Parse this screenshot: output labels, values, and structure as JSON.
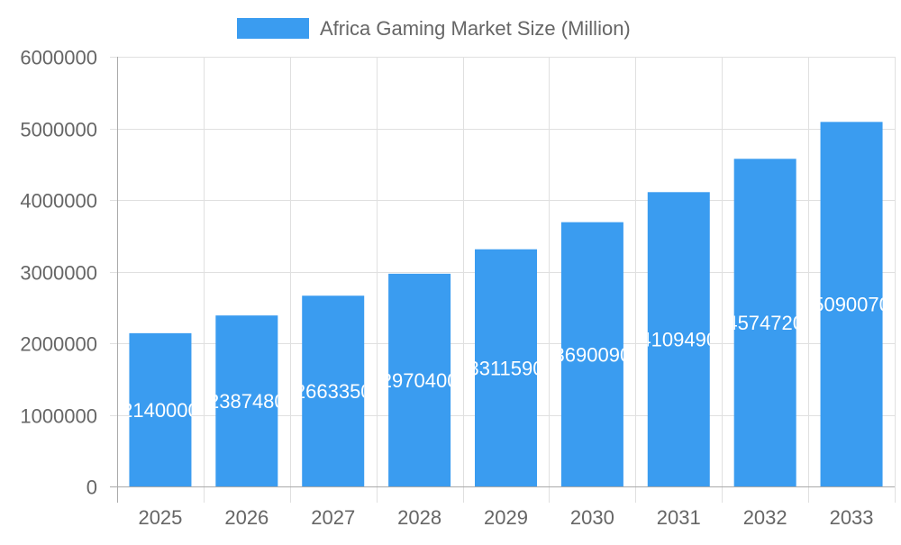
{
  "chart_data": {
    "type": "bar",
    "title": "",
    "categories": [
      "2025",
      "2026",
      "2027",
      "2028",
      "2029",
      "2030",
      "2031",
      "2032",
      "2033"
    ],
    "series": [
      {
        "name": "Africa Gaming Market Size (Million)",
        "color": "#3a9cf0",
        "values": [
          2140000,
          2387480,
          2663350,
          2970400,
          3311590,
          3690090,
          4109490,
          4574720,
          5090070
        ]
      }
    ],
    "yticks": [
      "0",
      "1000000",
      "2000000",
      "3000000",
      "4000000",
      "5000000",
      "6000000"
    ],
    "ylim": [
      0,
      6000000
    ],
    "xlabel": "",
    "ylabel": "",
    "grid": true,
    "legend": "top-center",
    "data_labels": "inside-bar, clipped"
  }
}
